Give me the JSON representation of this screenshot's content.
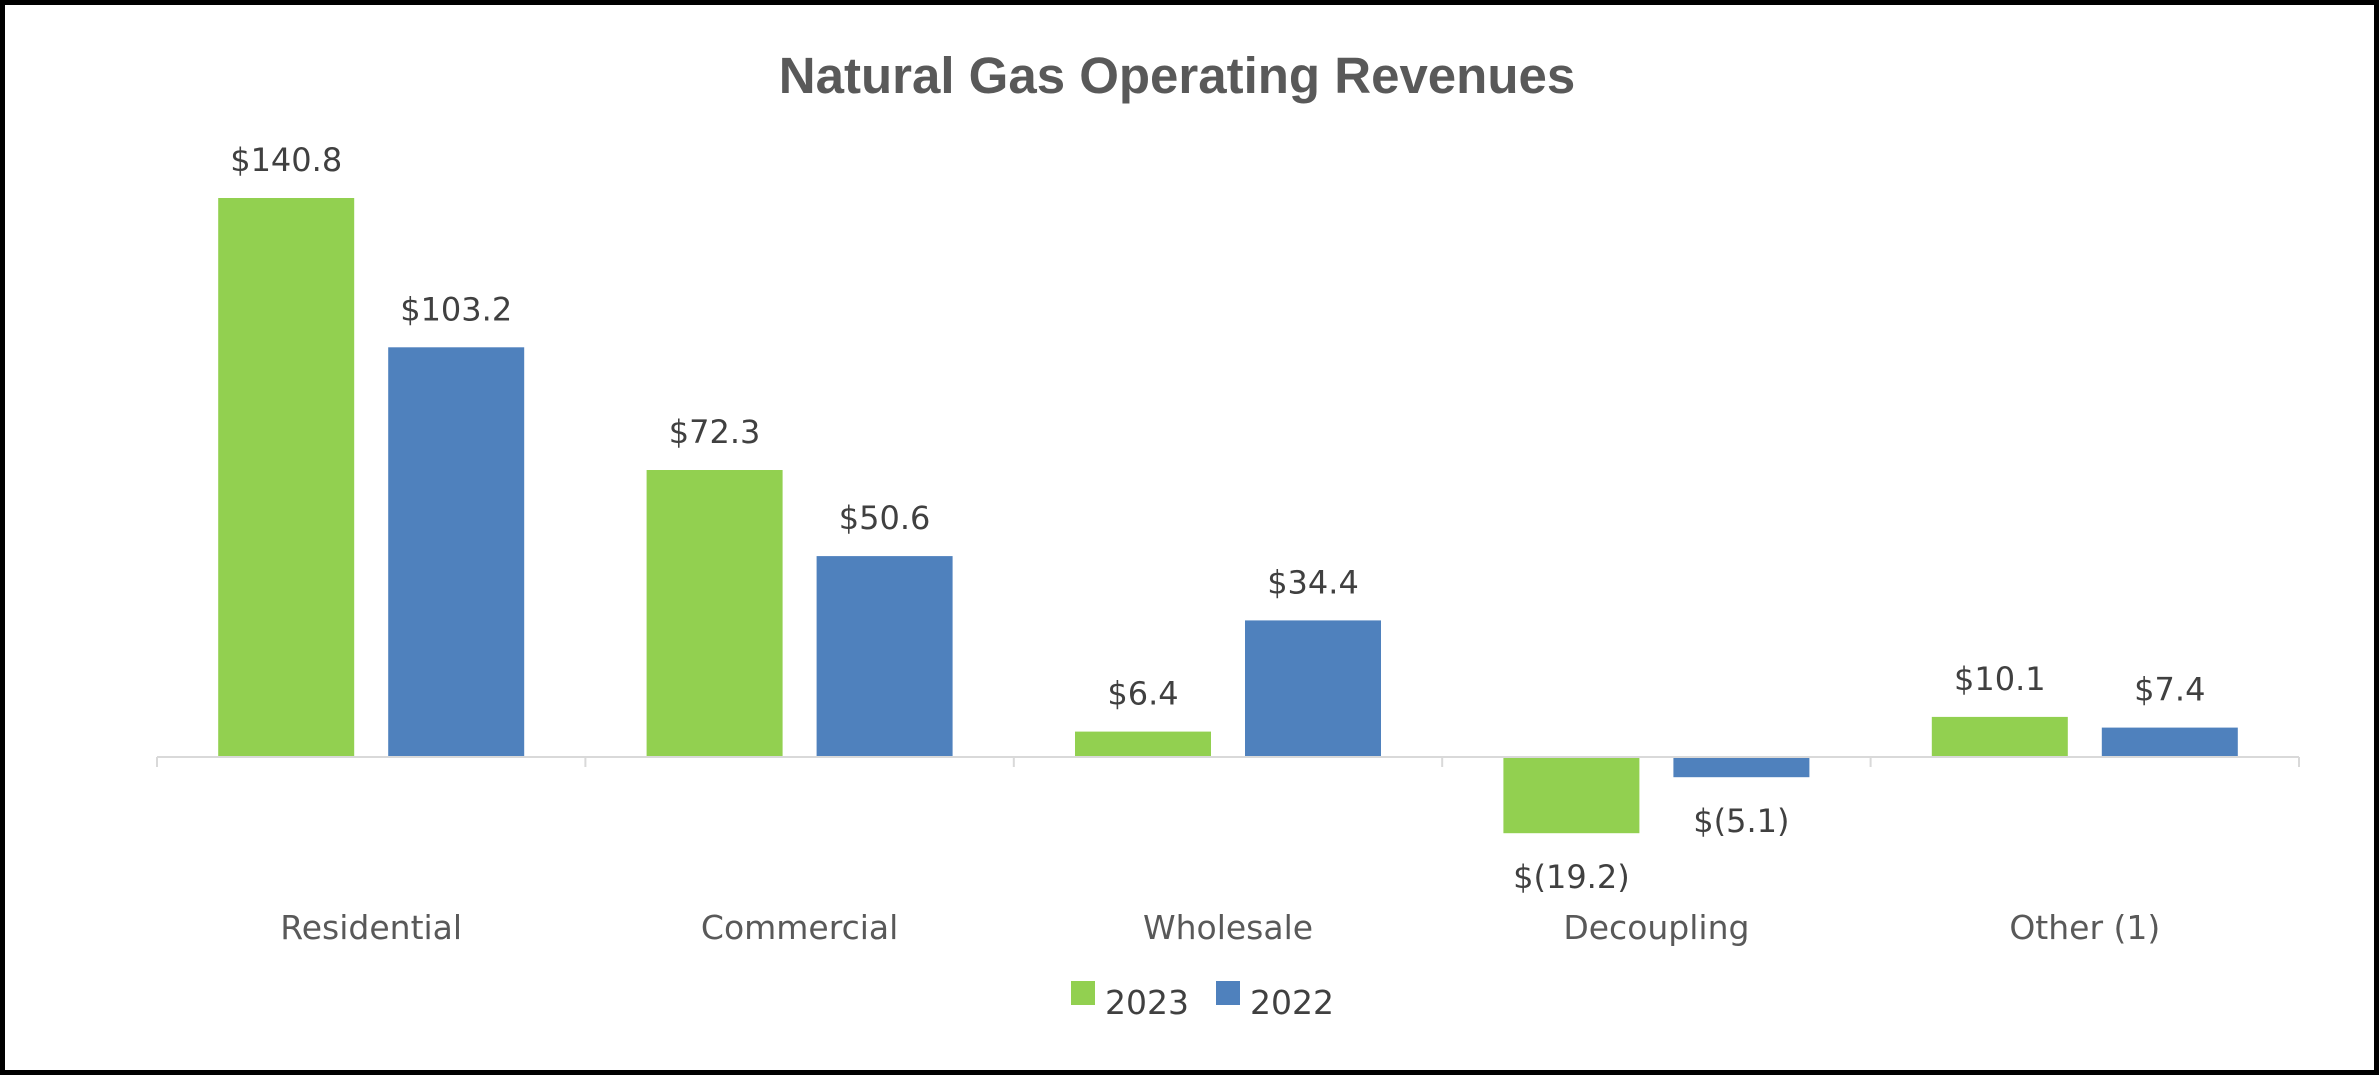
{
  "chart_data": {
    "type": "bar",
    "title": "Natural Gas Operating Revenues",
    "xlabel": "",
    "ylabel": "",
    "categories": [
      "Residential",
      "Commercial",
      "Wholesale",
      "Decoupling",
      "Other (1)"
    ],
    "series": [
      {
        "name": "2023",
        "color": "#92D050",
        "values": [
          140.8,
          72.3,
          6.4,
          -19.2,
          10.1
        ],
        "labels": [
          "$140.8",
          "$72.3",
          "$6.4",
          "$(19.2)",
          "$10.1"
        ]
      },
      {
        "name": "2022",
        "color": "#4F81BD",
        "values": [
          103.2,
          50.6,
          34.4,
          -5.1,
          7.4
        ],
        "labels": [
          "$103.2",
          "$50.6",
          "$34.4",
          "$(5.1)",
          "$7.4"
        ]
      }
    ],
    "ylim": [
      -40,
      160
    ],
    "grid": false,
    "legend_position": "bottom-center",
    "axis_color": "#D9D9D9"
  }
}
